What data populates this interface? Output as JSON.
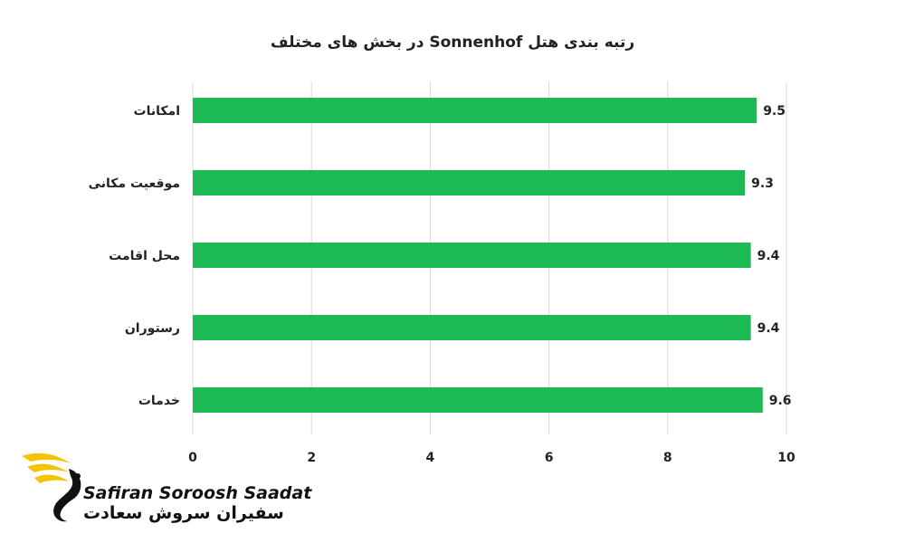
{
  "chart_data": {
    "type": "bar",
    "orientation": "horizontal",
    "title": "رتبه بندی هتل  Sonnenhof در بخش های مختلف",
    "categories": [
      "امکانات",
      "موقعیت مکانی",
      "محل اقامت",
      "رستوران",
      "خدمات"
    ],
    "values": [
      9.5,
      9.3,
      9.4,
      9.4,
      9.6
    ],
    "value_labels": [
      "9.5",
      "9.3",
      "9.4",
      "9.4",
      "9.6"
    ],
    "xlim": [
      0,
      10
    ],
    "xticks": [
      "0",
      "2",
      "4",
      "6",
      "8",
      "10"
    ],
    "grid": "vertical",
    "bar_color": "#1db954",
    "grid_color": "#d9d9d9"
  },
  "logo": {
    "name_en": "Safiran Soroosh Saadat",
    "name_fa": "سفیران سروش سعادت",
    "accent_color": "#f5c400"
  }
}
